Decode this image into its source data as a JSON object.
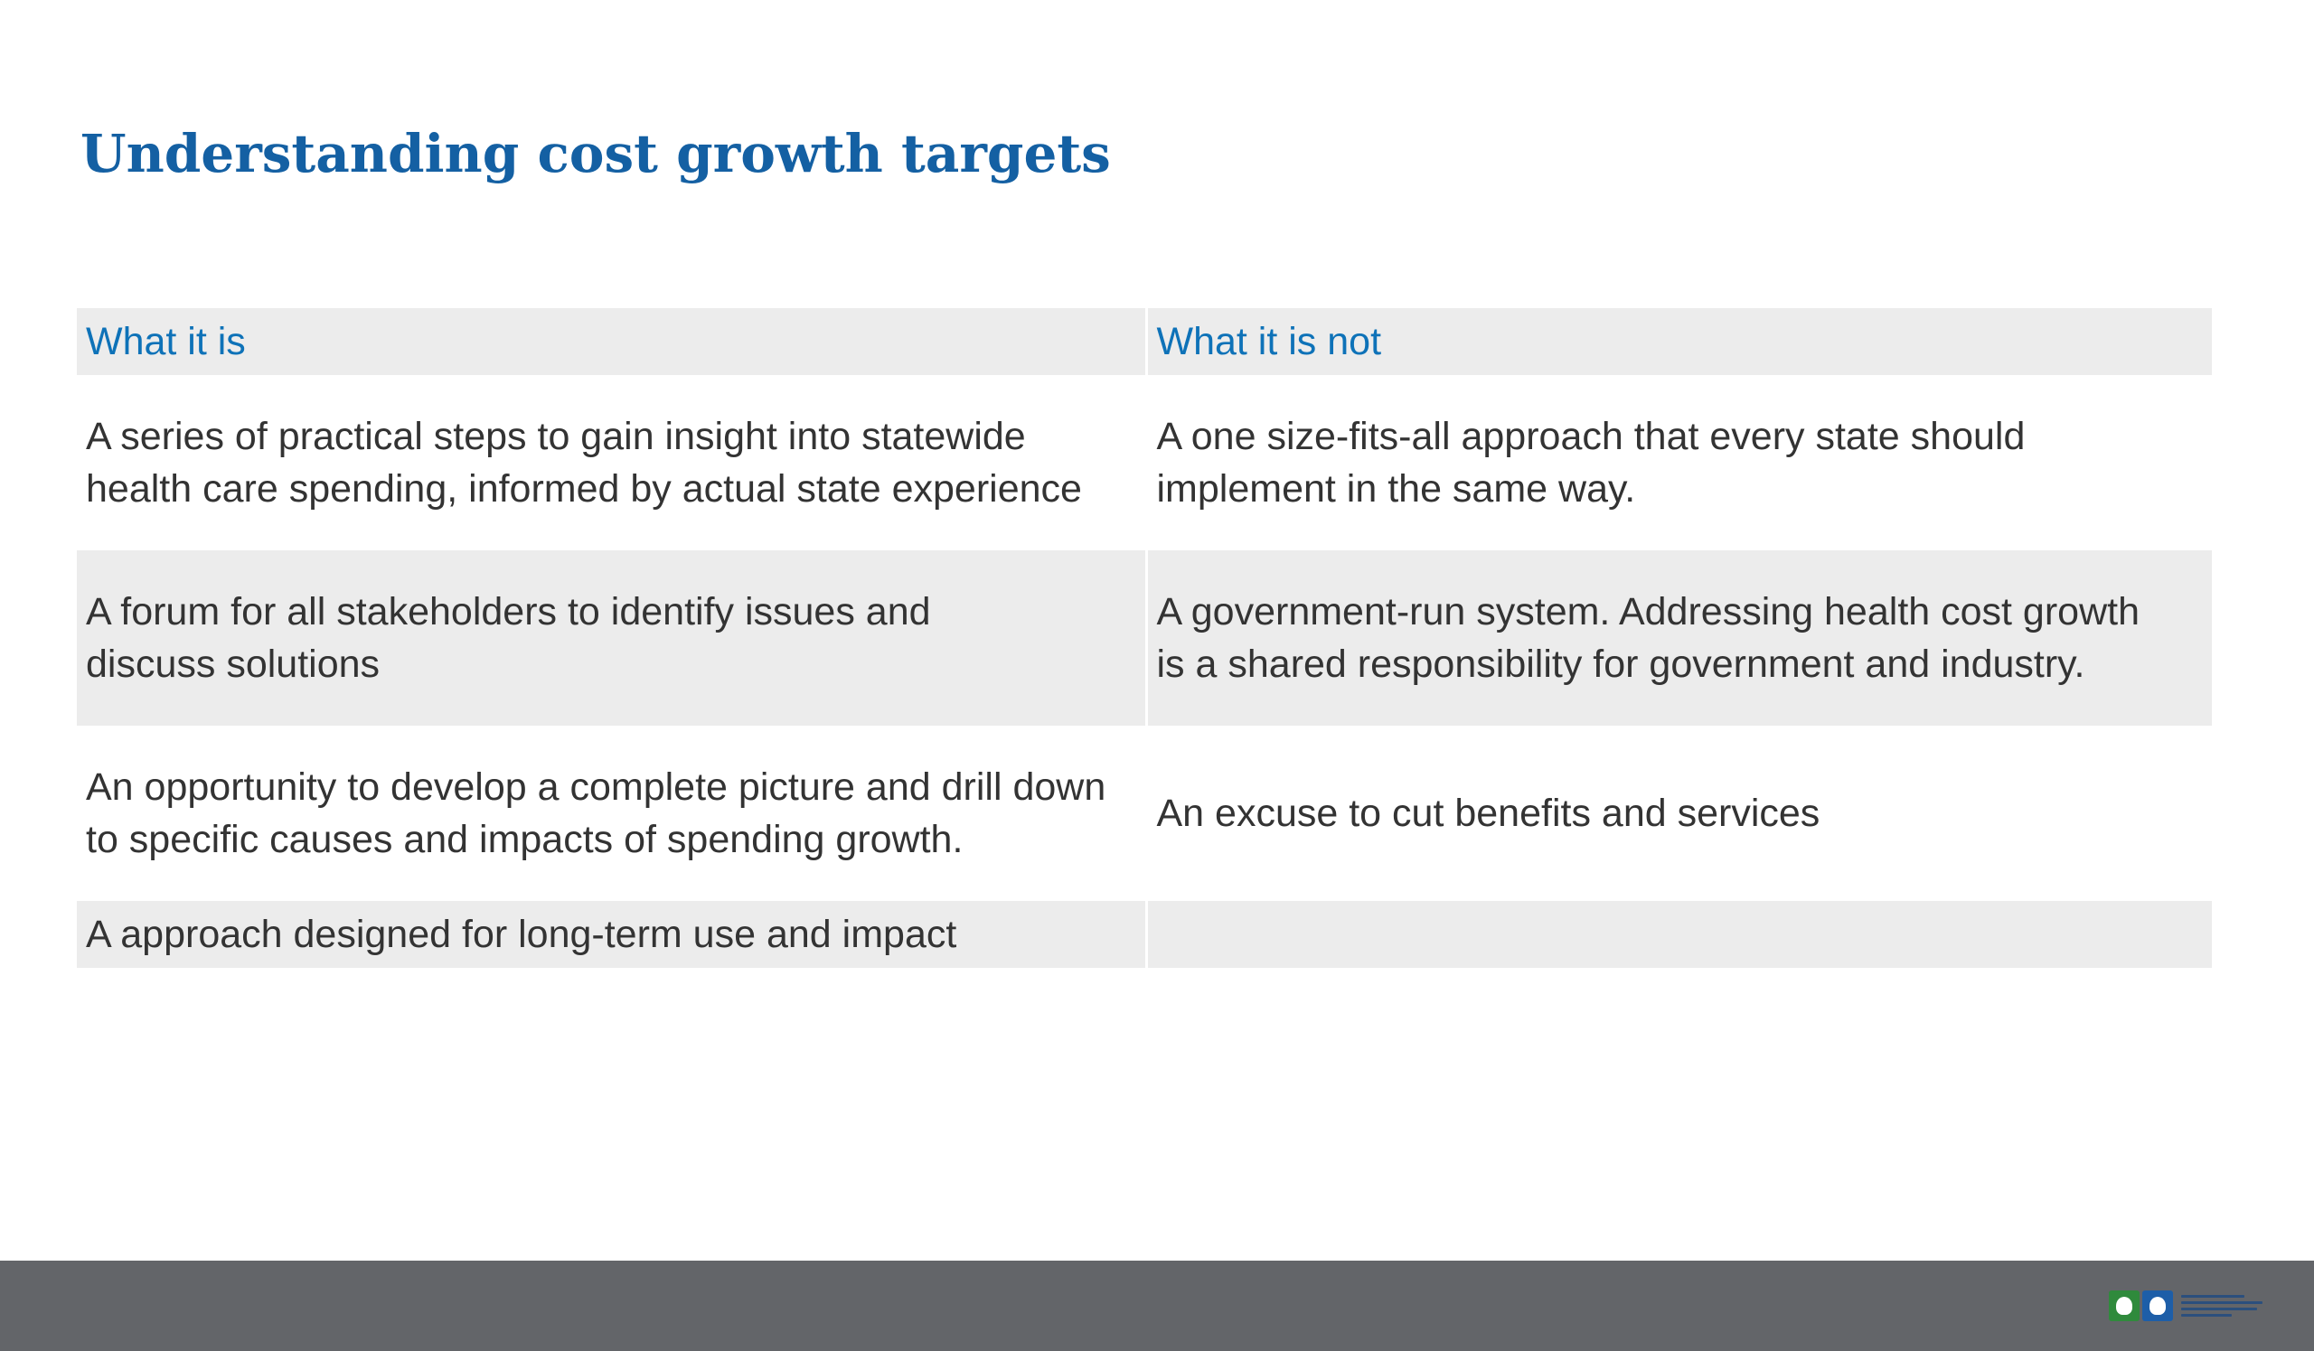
{
  "title": "Understanding cost growth targets",
  "table": {
    "headers": [
      "What it is",
      "What it is not"
    ],
    "rows": [
      {
        "is": "A series of practical steps to gain insight into statewide health care spending, informed by actual state experience",
        "is_not": "A one size-fits-all approach that every state should implement in the same way."
      },
      {
        "is": "A forum for all stakeholders to identify issues and discuss solutions",
        "is_not": "A government-run system. Addressing health cost growth is a shared responsibility for government and industry."
      },
      {
        "is": "An opportunity to develop a complete picture and drill down to specific causes and impacts of spending growth.",
        "is_not": "An excuse to cut benefits and services"
      },
      {
        "is": "A approach designed for long-term use and impact",
        "is_not": ""
      }
    ]
  },
  "footer": {
    "logo_icons": [
      "organization-logo-green-icon",
      "organization-logo-blue-icon"
    ]
  },
  "colors": {
    "title": "#1460a3",
    "header_text": "#0e72b8",
    "row_shade": "#ececec",
    "body_text": "#333333",
    "footer_bar": "#636569"
  }
}
